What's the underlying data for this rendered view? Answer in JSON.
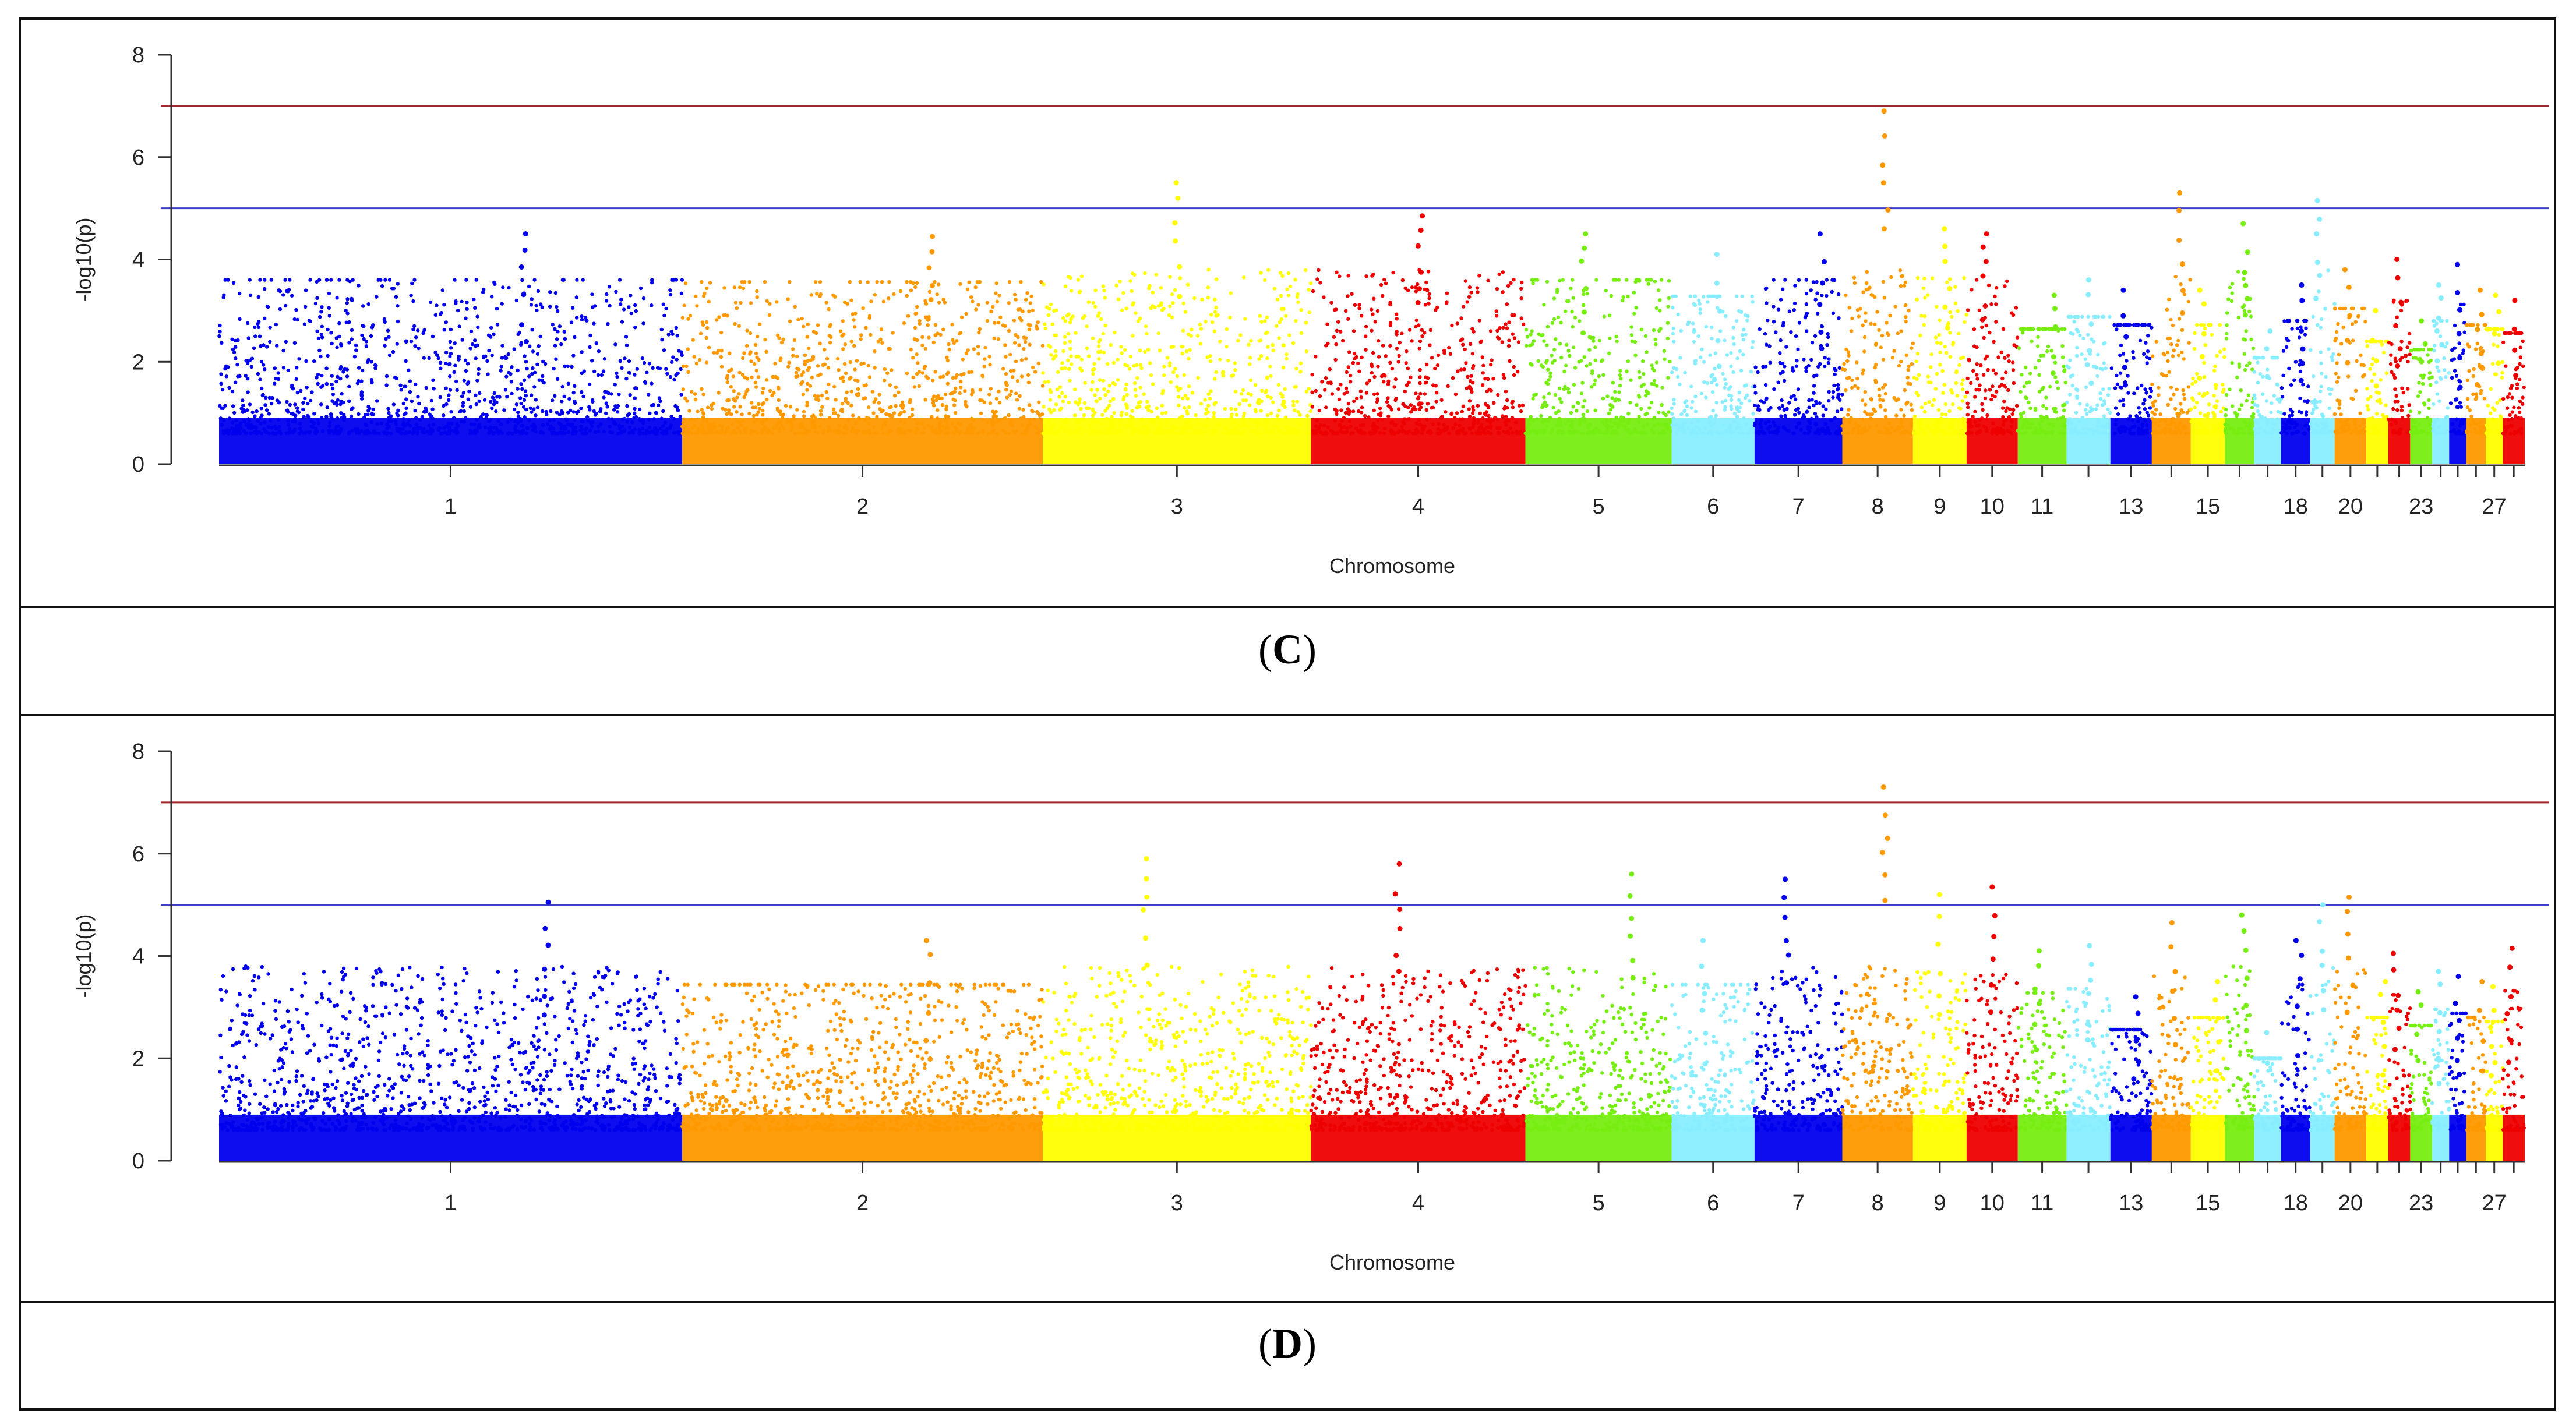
{
  "panels": [
    {
      "label": "C",
      "caption_open": "(",
      "caption_close": ")",
      "chart_data": {
        "type": "scatter",
        "subtype": "manhattan",
        "xlabel": "Chromosome",
        "ylabel": "-log10(p)",
        "ylim": [
          0,
          8
        ],
        "yticks": [
          0,
          2,
          4,
          6,
          8
        ],
        "threshold_lines": [
          {
            "value": 7,
            "color": "#a0282c"
          },
          {
            "value": 5,
            "color": "#3a3ec8"
          }
        ],
        "chromosomes": [
          {
            "id": "1",
            "label": "1",
            "color": "#0000ee",
            "width": 9.5,
            "peak": 4.5
          },
          {
            "id": "2",
            "label": "2",
            "color": "#ff9900",
            "width": 7.4,
            "peak": 4.45
          },
          {
            "id": "3",
            "label": "3",
            "color": "#ffff00",
            "width": 5.5,
            "peak": 5.5
          },
          {
            "id": "4",
            "label": "4",
            "color": "#ee0000",
            "width": 4.4,
            "peak": 4.85
          },
          {
            "id": "5",
            "label": "5",
            "color": "#77ee11",
            "width": 3.0,
            "peak": 4.5
          },
          {
            "id": "6",
            "label": "6",
            "color": "#88eeff",
            "width": 1.7,
            "peak": 4.1
          },
          {
            "id": "7",
            "label": "7",
            "color": "#0000ee",
            "width": 1.8,
            "peak": 4.5
          },
          {
            "id": "8",
            "label": "8",
            "color": "#ff9900",
            "width": 1.45,
            "peak": 6.9
          },
          {
            "id": "9",
            "label": "9",
            "color": "#ffff00",
            "width": 1.1,
            "peak": 4.6
          },
          {
            "id": "10",
            "label": "10",
            "color": "#ee0000",
            "width": 1.05,
            "peak": 4.5
          },
          {
            "id": "11",
            "label": "11",
            "color": "#77ee11",
            "width": 1.0,
            "peak": 3.3
          },
          {
            "id": "12",
            "label": "",
            "color": "#88eeff",
            "width": 0.9,
            "peak": 3.6
          },
          {
            "id": "13",
            "label": "13",
            "color": "#0000ee",
            "width": 0.85,
            "peak": 3.4
          },
          {
            "id": "14",
            "label": "",
            "color": "#ff9900",
            "width": 0.8,
            "peak": 5.3
          },
          {
            "id": "15",
            "label": "15",
            "color": "#ffff00",
            "width": 0.7,
            "peak": 3.4
          },
          {
            "id": "16",
            "label": "",
            "color": "#77ee11",
            "width": 0.6,
            "peak": 4.7
          },
          {
            "id": "17",
            "label": "",
            "color": "#88eeff",
            "width": 0.55,
            "peak": 2.6
          },
          {
            "id": "18",
            "label": "18",
            "color": "#0000ee",
            "width": 0.6,
            "peak": 3.5
          },
          {
            "id": "19",
            "label": "",
            "color": "#88eeff",
            "width": 0.5,
            "peak": 5.15
          },
          {
            "id": "20",
            "label": "20",
            "color": "#ff9900",
            "width": 0.65,
            "peak": 3.8
          },
          {
            "id": "21",
            "label": "",
            "color": "#ffff00",
            "width": 0.45,
            "peak": 3.0
          },
          {
            "id": "22",
            "label": "",
            "color": "#ee0000",
            "width": 0.45,
            "peak": 4.0
          },
          {
            "id": "23",
            "label": "23",
            "color": "#77ee11",
            "width": 0.45,
            "peak": 2.8
          },
          {
            "id": "24",
            "label": "",
            "color": "#88eeff",
            "width": 0.35,
            "peak": 3.5
          },
          {
            "id": "25",
            "label": "",
            "color": "#0000ee",
            "width": 0.35,
            "peak": 3.9
          },
          {
            "id": "26",
            "label": "",
            "color": "#ff9900",
            "width": 0.4,
            "peak": 3.4
          },
          {
            "id": "27",
            "label": "27",
            "color": "#ffff00",
            "width": 0.35,
            "peak": 3.3
          },
          {
            "id": "28",
            "label": "",
            "color": "#ee0000",
            "width": 0.45,
            "peak": 3.2
          }
        ]
      }
    },
    {
      "label": "D",
      "caption_open": "(",
      "caption_close": ")",
      "chart_data": {
        "type": "scatter",
        "subtype": "manhattan",
        "xlabel": "Chromosome",
        "ylabel": "-log10(p)",
        "ylim": [
          0,
          8
        ],
        "yticks": [
          0,
          2,
          4,
          6,
          8
        ],
        "threshold_lines": [
          {
            "value": 7,
            "color": "#a0282c"
          },
          {
            "value": 5,
            "color": "#3a3ec8"
          }
        ],
        "chromosomes": [
          {
            "id": "1",
            "label": "1",
            "color": "#0000ee",
            "width": 9.5,
            "peak": 5.05
          },
          {
            "id": "2",
            "label": "2",
            "color": "#ff9900",
            "width": 7.4,
            "peak": 4.3
          },
          {
            "id": "3",
            "label": "3",
            "color": "#ffff00",
            "width": 5.5,
            "peak": 5.9
          },
          {
            "id": "4",
            "label": "4",
            "color": "#ee0000",
            "width": 4.4,
            "peak": 5.8
          },
          {
            "id": "5",
            "label": "5",
            "color": "#77ee11",
            "width": 3.0,
            "peak": 5.6
          },
          {
            "id": "6",
            "label": "6",
            "color": "#88eeff",
            "width": 1.7,
            "peak": 4.3
          },
          {
            "id": "7",
            "label": "7",
            "color": "#0000ee",
            "width": 1.8,
            "peak": 5.5
          },
          {
            "id": "8",
            "label": "8",
            "color": "#ff9900",
            "width": 1.45,
            "peak": 7.3
          },
          {
            "id": "9",
            "label": "9",
            "color": "#ffff00",
            "width": 1.1,
            "peak": 5.2
          },
          {
            "id": "10",
            "label": "10",
            "color": "#ee0000",
            "width": 1.05,
            "peak": 5.35
          },
          {
            "id": "11",
            "label": "11",
            "color": "#77ee11",
            "width": 1.0,
            "peak": 4.1
          },
          {
            "id": "12",
            "label": "",
            "color": "#88eeff",
            "width": 0.9,
            "peak": 4.2
          },
          {
            "id": "13",
            "label": "13",
            "color": "#0000ee",
            "width": 0.85,
            "peak": 3.2
          },
          {
            "id": "14",
            "label": "",
            "color": "#ff9900",
            "width": 0.8,
            "peak": 4.65
          },
          {
            "id": "15",
            "label": "15",
            "color": "#ffff00",
            "width": 0.7,
            "peak": 3.5
          },
          {
            "id": "16",
            "label": "",
            "color": "#77ee11",
            "width": 0.6,
            "peak": 4.8
          },
          {
            "id": "17",
            "label": "",
            "color": "#88eeff",
            "width": 0.55,
            "peak": 2.5
          },
          {
            "id": "18",
            "label": "18",
            "color": "#0000ee",
            "width": 0.6,
            "peak": 4.3
          },
          {
            "id": "19",
            "label": "",
            "color": "#88eeff",
            "width": 0.5,
            "peak": 5.0
          },
          {
            "id": "20",
            "label": "20",
            "color": "#ff9900",
            "width": 0.65,
            "peak": 5.15
          },
          {
            "id": "21",
            "label": "",
            "color": "#ffff00",
            "width": 0.45,
            "peak": 3.5
          },
          {
            "id": "22",
            "label": "",
            "color": "#ee0000",
            "width": 0.45,
            "peak": 4.05
          },
          {
            "id": "23",
            "label": "23",
            "color": "#77ee11",
            "width": 0.45,
            "peak": 3.3
          },
          {
            "id": "24",
            "label": "",
            "color": "#88eeff",
            "width": 0.35,
            "peak": 3.7
          },
          {
            "id": "25",
            "label": "",
            "color": "#0000ee",
            "width": 0.35,
            "peak": 3.6
          },
          {
            "id": "26",
            "label": "",
            "color": "#ff9900",
            "width": 0.4,
            "peak": 3.5
          },
          {
            "id": "27",
            "label": "27",
            "color": "#ffff00",
            "width": 0.35,
            "peak": 3.4
          },
          {
            "id": "28",
            "label": "",
            "color": "#ee0000",
            "width": 0.45,
            "peak": 4.15
          }
        ]
      }
    }
  ]
}
